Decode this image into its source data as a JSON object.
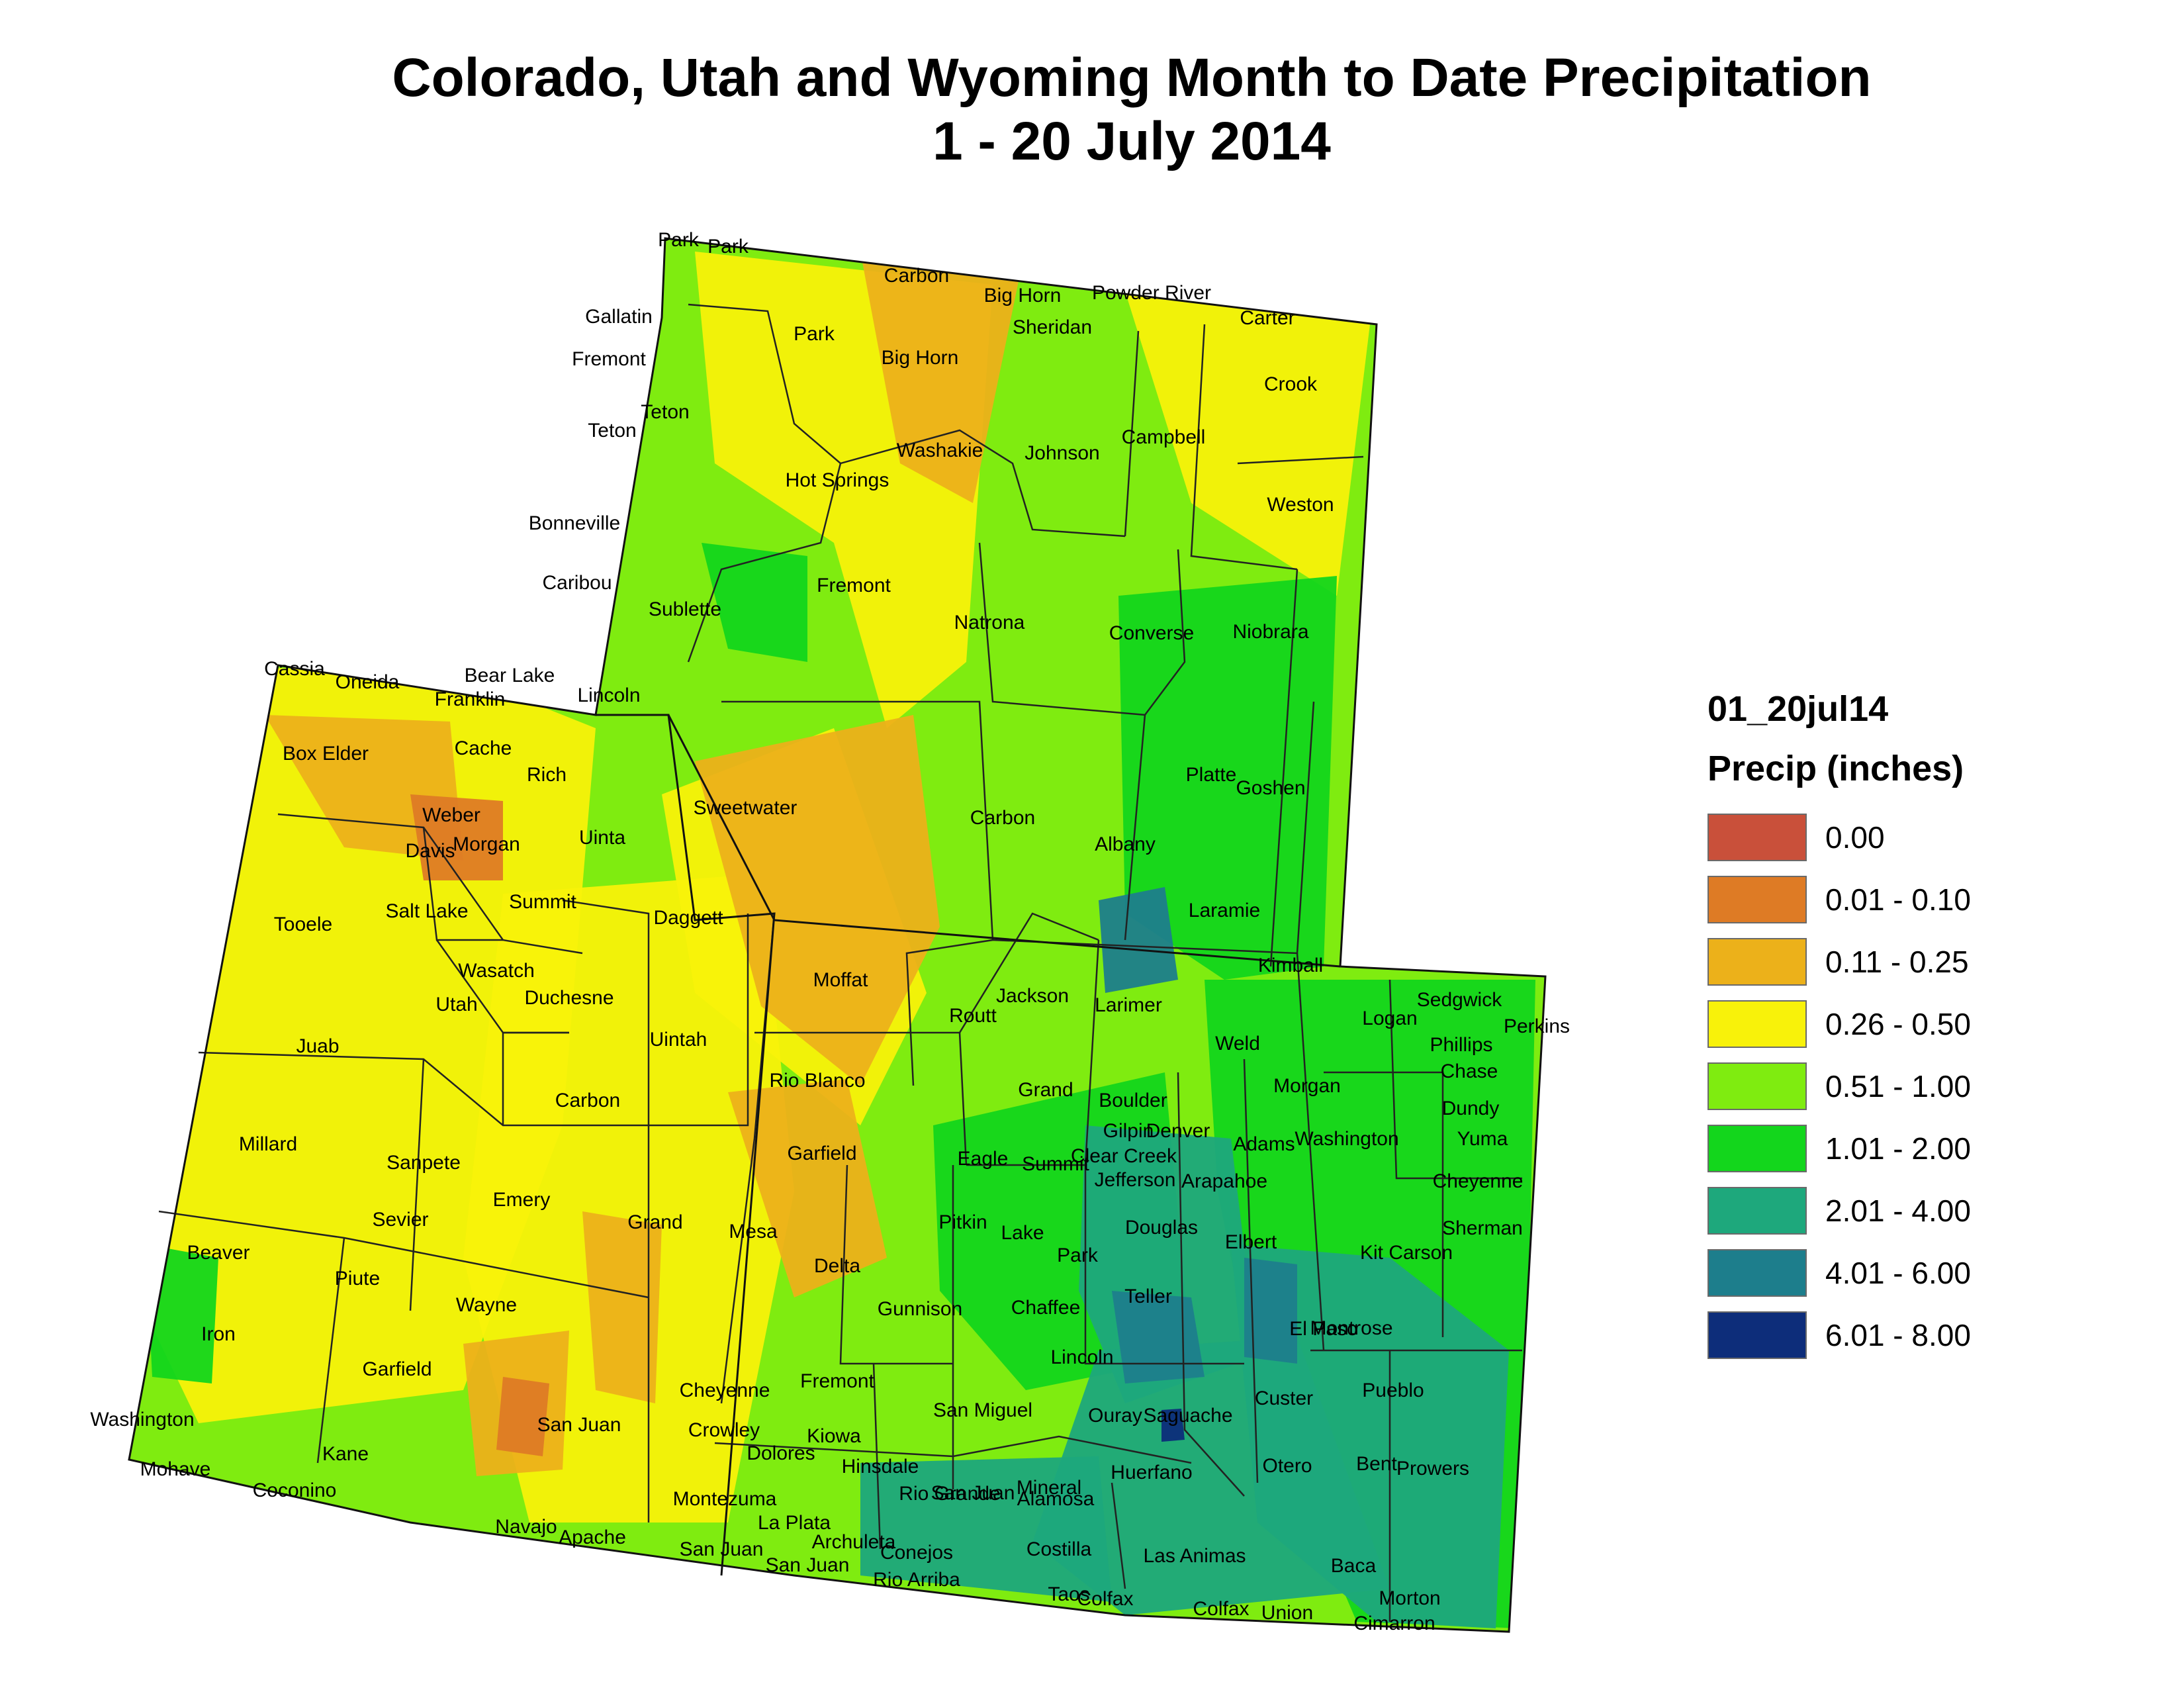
{
  "title": {
    "line1": "Colorado, Utah and Wyoming Month to Date Precipitation",
    "line2": "1 - 20 July 2014"
  },
  "legend": {
    "layer_name": "01_20jul14",
    "field_name": "Precip (inches)",
    "classes": [
      {
        "label": "0.00",
        "color": "#c9503a"
      },
      {
        "label": "0.01 - 0.10",
        "color": "#de7b25"
      },
      {
        "label": "0.11 - 0.25",
        "color": "#ecb11a"
      },
      {
        "label": "0.26 - 0.50",
        "color": "#f8f20a"
      },
      {
        "label": "0.51 - 1.00",
        "color": "#7fec10"
      },
      {
        "label": "1.01 - 2.00",
        "color": "#13d61c"
      },
      {
        "label": "2.01 - 4.00",
        "color": "#1ea87c"
      },
      {
        "label": "4.01 - 6.00",
        "color": "#1d7e8c"
      },
      {
        "label": "6.01 - 8.00",
        "color": "#0d2d7a"
      }
    ]
  },
  "map_labels": {
    "wyoming": [
      "Park",
      "Park",
      "Carbon",
      "Big Horn",
      "Powder River",
      "Gallatin",
      "Carter",
      "Park",
      "Sheridan",
      "Fremont",
      "Big Horn",
      "Crook",
      "Teton",
      "Teton",
      "Washakie",
      "Johnson",
      "Campbell",
      "Hot Springs",
      "Bonneville",
      "Weston",
      "Caribou",
      "Fremont",
      "Sublette",
      "Natrona",
      "Converse",
      "Niobrara",
      "Lincoln",
      "Sweetwater",
      "Carbon",
      "Platte",
      "Goshen",
      "Albany",
      "Laramie",
      "Uinta"
    ],
    "utah": [
      "Cassia",
      "Oneida",
      "Bear Lake",
      "Franklin",
      "Box Elder",
      "Cache",
      "Rich",
      "Weber",
      "Davis",
      "Morgan",
      "Summit",
      "Salt Lake",
      "Tooele",
      "Daggett",
      "Wasatch",
      "Duchesne",
      "Uintah",
      "Utah",
      "Juab",
      "Carbon",
      "Millard",
      "Sanpete",
      "Emery",
      "Sevier",
      "Grand",
      "Beaver",
      "Piute",
      "Wayne",
      "Iron",
      "Garfield",
      "San Juan",
      "Washington",
      "Kane",
      "Mohave",
      "Coconino",
      "Navajo",
      "Apache"
    ],
    "colorado": [
      "Moffat",
      "Routt",
      "Jackson",
      "Larimer",
      "Kimball",
      "Logan",
      "Sedgwick",
      "Perkins",
      "Phillips",
      "Chase",
      "Weld",
      "Rio Blanco",
      "Grand",
      "Boulder",
      "Morgan",
      "Dundy",
      "Gilpin",
      "Denver",
      "Washington",
      "Yuma",
      "Garfield",
      "Eagle",
      "Summit",
      "Clear Creek",
      "Adams",
      "Jefferson",
      "Arapahoe",
      "Cheyenne",
      "Mesa",
      "Pitkin",
      "Lake",
      "Douglas",
      "Elbert",
      "Sherman",
      "Delta",
      "Park",
      "Kit Carson",
      "Gunnison",
      "Chaffee",
      "Teller",
      "El Paso",
      "Montrose",
      "Lincoln",
      "Cheyenne",
      "Fremont",
      "San Miguel",
      "Ouray",
      "Saguache",
      "Custer",
      "Pueblo",
      "Crowley",
      "Kiowa",
      "Dolores",
      "Hinsdale",
      "San Juan",
      "Mineral",
      "Otero",
      "Bent",
      "Prowers",
      "Rio Grande",
      "Alamosa",
      "Huerfano",
      "Montezuma",
      "La Plata",
      "Archuleta",
      "Conejos",
      "Costilla",
      "Las Animas",
      "Baca",
      "San Juan",
      "San Juan",
      "Rio Arriba",
      "Taos",
      "Colfax",
      "Colfax",
      "Union",
      "Morton",
      "Cimarron"
    ]
  }
}
